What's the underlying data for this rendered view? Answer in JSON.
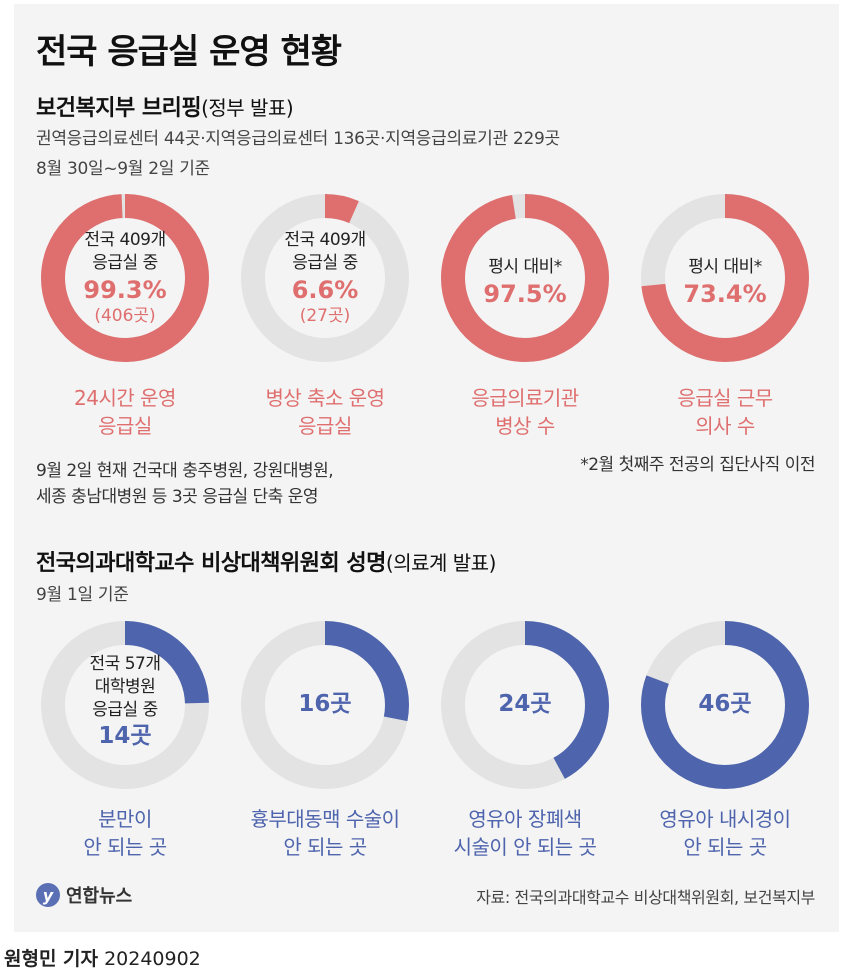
{
  "title": "전국 응급실 운영 현황",
  "section1": {
    "title": "보건복지부 브리핑",
    "title_paren": "(정부 발표)",
    "line1": "권역응급의료센터 44곳·지역응급의료센터 136곳·지역응급의료기관 229곳",
    "line2": "8월 30일~9월 2일 기준"
  },
  "section2": {
    "title": "전국의과대학교수 비상대책위원회 성명",
    "title_paren": "(의료계 발표)",
    "line1": "9월 1일 기준"
  },
  "note_left_1": "9월 2일 현재 건국대 충주병원, 강원대병원,",
  "note_left_2": "세종 충남대병원 등 3곳 응급실 단축 운영",
  "note_right": "*2월 첫째주 전공의 집단사직 이전",
  "logo_text": "연합뉴스",
  "source": "자료: 전국의과대학교수 비상대책위원회, 보건복지부",
  "byline_name": "원형민 기자",
  "byline_date": "20240902",
  "colors": {
    "red": "#df6f6f",
    "blue": "#4e64ad",
    "track": "#e3e3e3"
  },
  "chart_data": [
    {
      "type": "pie",
      "values": [
        99.3,
        97.5,
        6.6,
        73.4
      ],
      "unit": "%",
      "donuts": [
        {
          "center_line1": "전국 409개",
          "center_line2": "응급실 중",
          "value_text": "99.3%",
          "count_text": "(406곳)",
          "label_line1": "24시간 운영",
          "label_line2": "응급실",
          "percent": 99.3
        },
        {
          "center_line1": "전국 409개",
          "center_line2": "응급실 중",
          "value_text": "6.6%",
          "count_text": "(27곳)",
          "label_line1": "병상 축소 운영",
          "label_line2": "응급실",
          "percent": 6.6
        },
        {
          "center_line1": "평시 대비*",
          "value_text": "97.5%",
          "label_line1": "응급의료기관",
          "label_line2": "병상 수",
          "percent": 97.5
        },
        {
          "center_line1": "평시 대비*",
          "value_text": "73.4%",
          "label_line1": "응급실 근무",
          "label_line2": "의사 수",
          "percent": 73.4
        }
      ]
    },
    {
      "type": "pie",
      "total": 57,
      "values": [
        14,
        16,
        24,
        46
      ],
      "unit": "곳",
      "donuts": [
        {
          "center_line1": "전국 57개",
          "center_line2": "대학병원",
          "center_line3": "응급실 중",
          "value_text": "14곳",
          "label_line1": "분만이",
          "label_line2": "안 되는 곳",
          "value": 14
        },
        {
          "value_text": "16곳",
          "label_line1": "흉부대동맥 수술이",
          "label_line2": "안 되는 곳",
          "value": 16
        },
        {
          "value_text": "24곳",
          "label_line1": "영유아 장폐색",
          "label_line2": "시술이 안 되는 곳",
          "value": 24
        },
        {
          "value_text": "46곳",
          "label_line1": "영유아 내시경이",
          "label_line2": "안 되는 곳",
          "value": 46
        }
      ]
    }
  ]
}
